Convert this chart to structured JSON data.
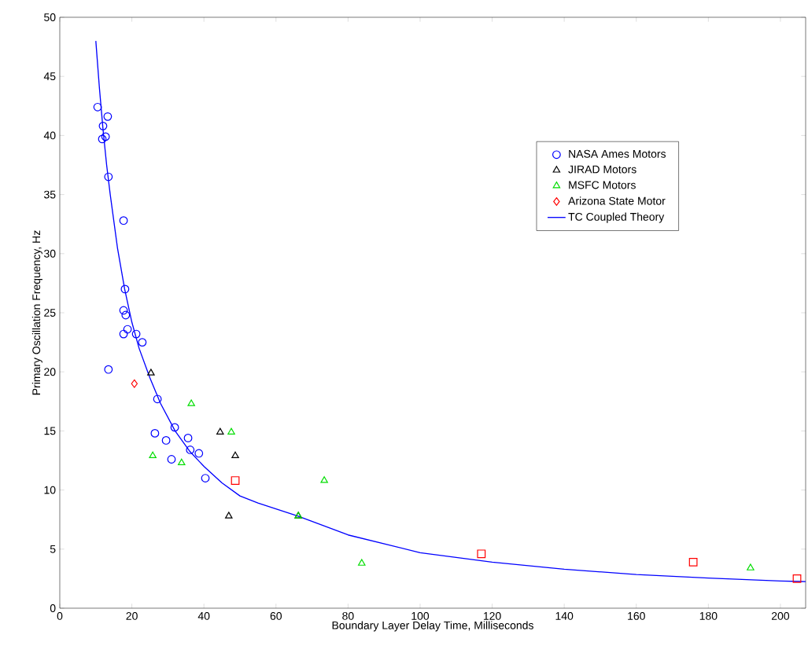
{
  "chart_data": {
    "type": "scatter",
    "xlabel": "Boundary Layer Delay Time, Milliseconds",
    "ylabel": "Primary Oscillation Frequency, Hz",
    "xlim": [
      0,
      207
    ],
    "ylim": [
      0,
      50
    ],
    "xticks": [
      0,
      20,
      40,
      60,
      80,
      100,
      120,
      140,
      160,
      180,
      200
    ],
    "yticks": [
      0,
      5,
      10,
      15,
      20,
      25,
      30,
      35,
      40,
      45,
      50
    ],
    "grid": false,
    "legend": "top right",
    "series": [
      {
        "name": "NASA Ames Motors",
        "marker": "circle",
        "color": "#0000ff",
        "x": [
          10.5,
          13.3,
          12.0,
          11.8,
          12.7,
          13.5,
          17.7,
          18.1,
          17.7,
          18.3,
          17.7,
          18.8,
          21.2,
          22.9,
          13.5,
          27.1,
          26.4,
          29.5,
          31.9,
          35.6,
          36.2,
          38.6,
          31.0,
          40.4
        ],
        "values": [
          42.4,
          41.6,
          40.8,
          39.7,
          39.9,
          36.5,
          32.8,
          27.0,
          25.2,
          24.8,
          23.2,
          23.6,
          23.2,
          22.5,
          20.2,
          17.7,
          14.8,
          14.2,
          15.3,
          14.4,
          13.4,
          13.1,
          12.6,
          11.0
        ]
      },
      {
        "marker": "square",
        "color": "#ff0000",
        "x": [
          48.7,
          117.0,
          175.8,
          204.6
        ],
        "values": [
          10.8,
          4.6,
          3.9,
          2.5
        ]
      },
      {
        "name": "JIRAD Motors",
        "marker": "triangle",
        "color": "#000000",
        "x": [
          25.3,
          44.5,
          48.7,
          46.9,
          66.2
        ],
        "values": [
          19.9,
          14.9,
          12.9,
          7.8,
          7.8
        ]
      },
      {
        "name": "MSFC Motors",
        "marker": "triangle",
        "color": "#00dd00",
        "x": [
          36.5,
          47.6,
          25.8,
          33.8,
          73.4,
          66.2,
          83.8,
          191.7
        ],
        "values": [
          17.3,
          14.9,
          12.9,
          12.3,
          10.8,
          7.8,
          3.8,
          3.4
        ]
      },
      {
        "name": "Arizona State Motor",
        "marker": "diamond",
        "color": "#ff0000",
        "x": [
          20.7
        ],
        "values": [
          19.0
        ]
      },
      {
        "name": "TC Coupled Theory",
        "type": "line",
        "marker": "none",
        "line_style": "solid",
        "color": "#0000ff",
        "x": [
          10,
          11,
          12,
          13,
          14,
          16,
          18,
          20,
          22,
          25,
          28,
          32,
          36,
          40,
          45,
          50,
          55,
          60,
          66,
          80,
          100,
          120,
          140,
          160,
          180,
          200,
          207
        ],
        "values": [
          48,
          44,
          40.5,
          37.5,
          35,
          30.5,
          27,
          24.2,
          22,
          19.5,
          17.3,
          15,
          13.3,
          12,
          10.6,
          9.5,
          8.9,
          8.4,
          7.8,
          6.2,
          4.7,
          3.9,
          3.3,
          2.85,
          2.55,
          2.3,
          2.25
        ]
      }
    ]
  }
}
